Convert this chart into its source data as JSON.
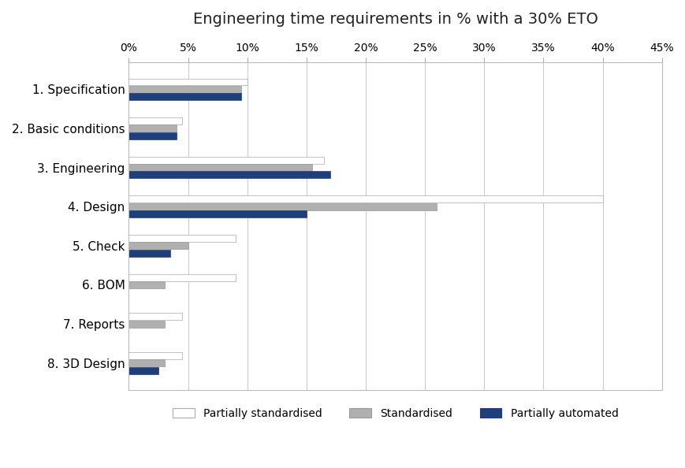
{
  "title": "Engineering time requirements in % with a 30% ETO",
  "categories": [
    "1. Specification",
    "2. Basic conditions",
    "3. Engineering",
    "4. Design",
    "5. Check",
    "6. BOM",
    "7. Reports",
    "8. 3D Design"
  ],
  "series_order": [
    "Partially standardised",
    "Standardised",
    "Partially automated"
  ],
  "series": {
    "Partially standardised": [
      10.0,
      4.5,
      16.5,
      40.0,
      9.0,
      9.0,
      4.5,
      4.5
    ],
    "Standardised": [
      9.5,
      4.0,
      15.5,
      26.0,
      5.0,
      3.0,
      3.0,
      3.0
    ],
    "Partially automated": [
      9.5,
      4.0,
      17.0,
      15.0,
      3.5,
      0.0,
      0.0,
      2.5
    ]
  },
  "colors": {
    "Partially standardised": "#ffffff",
    "Standardised": "#b0b0b0",
    "Partially automated": "#1f3f7a"
  },
  "edge_colors": {
    "Partially standardised": "#aaaaaa",
    "Standardised": "#999999",
    "Partially automated": "#1f3f7a"
  },
  "xlim": [
    0,
    45
  ],
  "xticks": [
    0,
    5,
    10,
    15,
    20,
    25,
    30,
    35,
    40,
    45
  ],
  "xticklabels": [
    "0%",
    "5%",
    "10%",
    "15%",
    "20%",
    "25%",
    "30%",
    "35%",
    "40%",
    "45%"
  ],
  "bar_height": 0.18,
  "background_color": "#ffffff",
  "grid_color": "#cccccc",
  "title_fontsize": 14,
  "tick_fontsize": 10,
  "label_fontsize": 11,
  "legend_fontsize": 10,
  "outer_border_color": "#cccccc"
}
